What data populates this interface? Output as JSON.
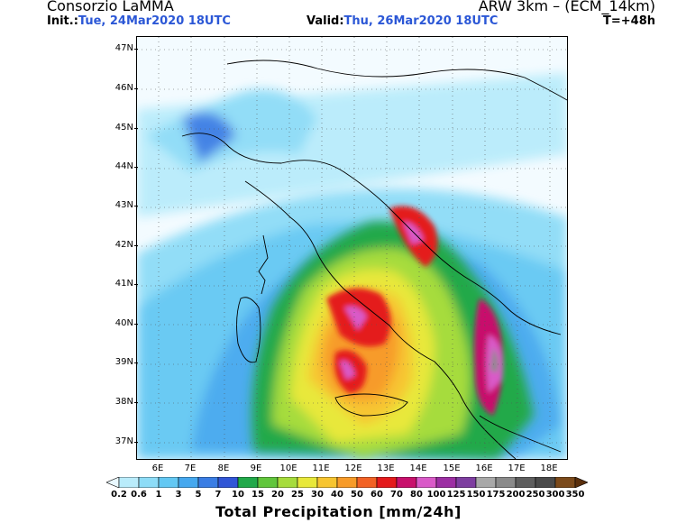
{
  "header": {
    "organization": "Consorzio LaMMA",
    "model": "ARW 3km – (ECM_14km)",
    "init_label": "Init.:",
    "init_value": "Tue, 24Mar2020 18UTC",
    "valid_label": "Valid:",
    "valid_value": "Thu, 26Mar2020 18UTC",
    "forecast_step": "T=+48h"
  },
  "map": {
    "lat_labels": [
      "47N",
      "46N",
      "45N",
      "44N",
      "43N",
      "42N",
      "41N",
      "40N",
      "39N",
      "38N",
      "37N"
    ],
    "lon_labels": [
      "6E",
      "7E",
      "8E",
      "9E",
      "10E",
      "11E",
      "12E",
      "13E",
      "14E",
      "15E",
      "16E",
      "17E",
      "18E"
    ],
    "grid_lines": "dotted"
  },
  "colorbar": {
    "labels": [
      "0.2",
      "0.6",
      "1",
      "3",
      "5",
      "7",
      "10",
      "15",
      "20",
      "25",
      "30",
      "40",
      "50",
      "60",
      "70",
      "80",
      "100",
      "125",
      "150",
      "175",
      "200",
      "250",
      "300",
      "350"
    ],
    "colors": [
      "#e9f8ff",
      "#b9ecfb",
      "#8ddcf7",
      "#63c8f3",
      "#45a8ef",
      "#3a7de4",
      "#3156d6",
      "#21a94a",
      "#61c63c",
      "#a6dc3c",
      "#e8e83a",
      "#f7c530",
      "#f79b29",
      "#f26225",
      "#e41a1c",
      "#c8106c",
      "#d95ac8",
      "#9c2ea3",
      "#7e3ea0",
      "#a8a8a8",
      "#8a8a8a",
      "#5e5e5e",
      "#4a4a4a",
      "#7b4a1b",
      "#5a2f0c"
    ],
    "title": "Total Precipitation [mm/24h]"
  }
}
